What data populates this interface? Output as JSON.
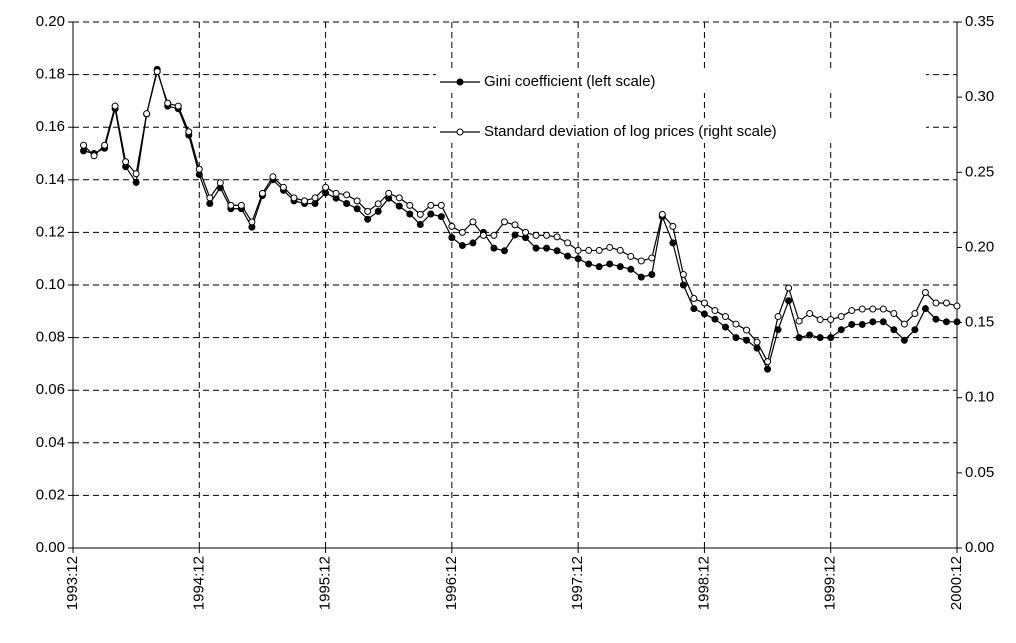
{
  "chart_data": {
    "type": "line",
    "categories": [
      "1993:12",
      null,
      null,
      null,
      null,
      null,
      null,
      null,
      null,
      null,
      null,
      null,
      "1994:12",
      null,
      null,
      null,
      null,
      null,
      null,
      null,
      null,
      null,
      null,
      null,
      "1995:12",
      null,
      null,
      null,
      null,
      null,
      null,
      null,
      null,
      null,
      null,
      null,
      "1996:12",
      null,
      null,
      null,
      null,
      null,
      null,
      null,
      null,
      null,
      null,
      null,
      "1997:12",
      null,
      null,
      null,
      null,
      null,
      null,
      null,
      null,
      null,
      null,
      null,
      "1998:12",
      null,
      null,
      null,
      null,
      null,
      null,
      null,
      null,
      null,
      null,
      null,
      "1999:12",
      null,
      null,
      null,
      null,
      null,
      null,
      null,
      null,
      null,
      null,
      null,
      "2000:12"
    ],
    "series": [
      {
        "name": "Gini coefficient (left scale)",
        "color": "#000000",
        "marker_fill": "#000000",
        "values": [
          null,
          0.151,
          0.15,
          0.152,
          0.167,
          0.145,
          0.139,
          0.165,
          0.182,
          0.168,
          0.167,
          0.157,
          0.142,
          0.131,
          0.137,
          0.129,
          0.129,
          0.122,
          0.134,
          0.14,
          0.136,
          0.132,
          0.131,
          0.131,
          0.135,
          0.133,
          0.131,
          0.129,
          0.125,
          0.128,
          0.133,
          0.13,
          0.127,
          0.123,
          0.127,
          0.126,
          0.118,
          0.115,
          0.116,
          0.12,
          0.114,
          0.113,
          0.119,
          0.118,
          0.114,
          0.114,
          0.113,
          0.111,
          0.11,
          0.108,
          0.107,
          0.108,
          0.107,
          0.106,
          0.103,
          0.104,
          0.126,
          0.116,
          0.1,
          0.091,
          0.089,
          0.087,
          0.084,
          0.08,
          0.079,
          0.076,
          0.068,
          0.083,
          0.094,
          0.08,
          0.081,
          0.08,
          0.08,
          0.083,
          0.085,
          0.085,
          0.086,
          0.086,
          0.083,
          0.079,
          0.083,
          0.091,
          0.087,
          0.086,
          0.086
        ]
      },
      {
        "name": "Standard deviation of log prices (right scale)",
        "color": "#000000",
        "marker_fill": "#ffffff",
        "axis": "y2",
        "values": [
          null,
          0.268,
          0.261,
          0.268,
          0.294,
          0.257,
          0.249,
          0.289,
          0.317,
          0.296,
          0.294,
          0.277,
          0.252,
          0.233,
          0.243,
          0.228,
          0.228,
          0.217,
          0.236,
          0.247,
          0.24,
          0.233,
          0.231,
          0.233,
          0.24,
          0.236,
          0.235,
          0.231,
          0.224,
          0.229,
          0.236,
          0.233,
          0.228,
          0.222,
          0.228,
          0.228,
          0.214,
          0.21,
          0.217,
          0.208,
          0.208,
          0.217,
          0.215,
          0.21,
          0.208,
          0.208,
          0.207,
          0.203,
          0.198,
          0.198,
          0.198,
          0.2,
          0.198,
          0.194,
          0.191,
          0.193,
          0.222,
          0.214,
          0.182,
          0.166,
          0.163,
          0.158,
          0.154,
          0.149,
          0.145,
          0.137,
          0.124,
          0.154,
          0.173,
          0.151,
          0.156,
          0.152,
          0.152,
          0.154,
          0.158,
          0.159,
          0.159,
          0.159,
          0.156,
          0.149,
          0.156,
          0.17,
          0.163,
          0.163,
          0.161
        ]
      }
    ],
    "ylim": [
      0,
      0.2
    ],
    "yticks": [
      {
        "value": 0,
        "label": "0.00"
      },
      {
        "value": 0.02,
        "label": "0.02"
      },
      {
        "value": 0.04,
        "label": "0.04"
      },
      {
        "value": 0.06,
        "label": "0.06"
      },
      {
        "value": 0.08,
        "label": "0.08"
      },
      {
        "value": 0.1,
        "label": "0.10"
      },
      {
        "value": 0.12,
        "label": "0.12"
      },
      {
        "value": 0.14,
        "label": "0.14"
      },
      {
        "value": 0.16,
        "label": "0.16"
      },
      {
        "value": 0.18,
        "label": "0.18"
      },
      {
        "value": 0.2,
        "label": "0.20"
      }
    ],
    "y2lim": [
      0,
      0.35
    ],
    "y2ticks": [
      {
        "value": 0,
        "label": "0.00"
      },
      {
        "value": 0.05,
        "label": "0.05"
      },
      {
        "value": 0.1,
        "label": "0.10"
      },
      {
        "value": 0.15,
        "label": "0.15"
      },
      {
        "value": 0.2,
        "label": "0.20"
      },
      {
        "value": 0.25,
        "label": "0.25"
      },
      {
        "value": 0.3,
        "label": "0.30"
      },
      {
        "value": 0.35,
        "label": "0.35"
      }
    ],
    "grid": true
  }
}
